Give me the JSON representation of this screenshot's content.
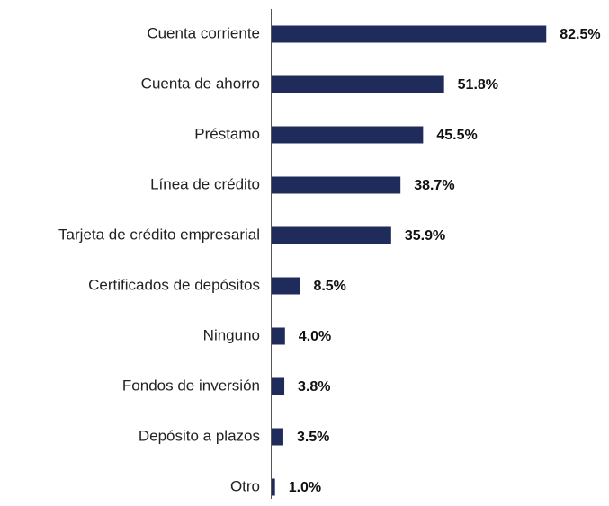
{
  "chart_data": {
    "type": "barh",
    "categories": [
      "Cuenta corriente",
      "Cuenta de ahorro",
      "Préstamo",
      "Línea de crédito",
      "Tarjeta de crédito empresarial",
      "Certificados de depósitos",
      "Ninguno",
      "Fondos de inversión",
      "Depósito a plazos",
      "Otro"
    ],
    "values": [
      82.5,
      51.8,
      45.5,
      38.7,
      35.9,
      8.5,
      4.0,
      3.8,
      3.5,
      1.0
    ],
    "value_labels": [
      "82.5%",
      "51.8%",
      "45.5%",
      "38.7%",
      "35.9%",
      "8.5%",
      "4.0%",
      "3.8%",
      "3.5%",
      "1.0%"
    ],
    "color": "#1f2b5b",
    "xlim": [
      0,
      100
    ]
  }
}
